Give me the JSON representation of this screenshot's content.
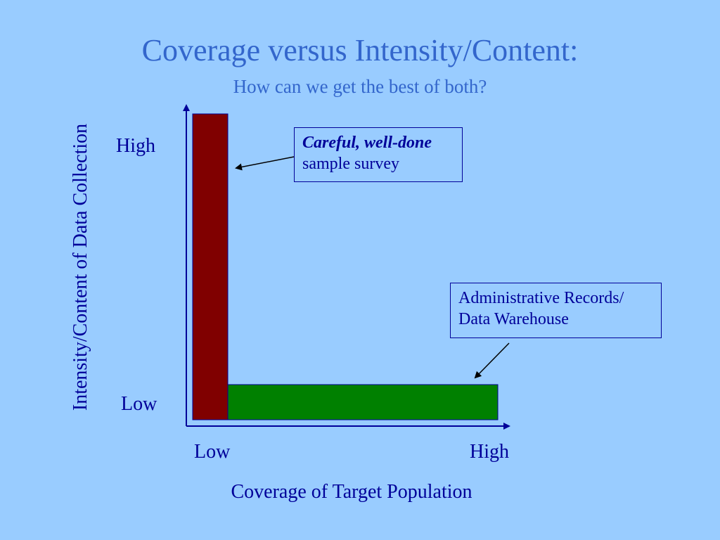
{
  "slide": {
    "title": "Coverage versus Intensity/Content:",
    "subtitle": "How can we get the best of both?"
  },
  "axes": {
    "ylabel": "Intensity/Content of Data Collection",
    "xlabel": "Coverage of Target Population",
    "y_high": "High",
    "y_low": "Low",
    "x_low": "Low",
    "x_high": "High"
  },
  "callouts": {
    "survey": {
      "line1": "Careful, well-done",
      "line2": "sample survey"
    },
    "admin": {
      "line1": "Administrative Records/",
      "line2": "Data Warehouse"
    }
  },
  "colors": {
    "background": "#99ccff",
    "survey_bar": "#800000",
    "admin_bar": "#008000",
    "axis": "#000099",
    "title": "#3366cc"
  }
}
